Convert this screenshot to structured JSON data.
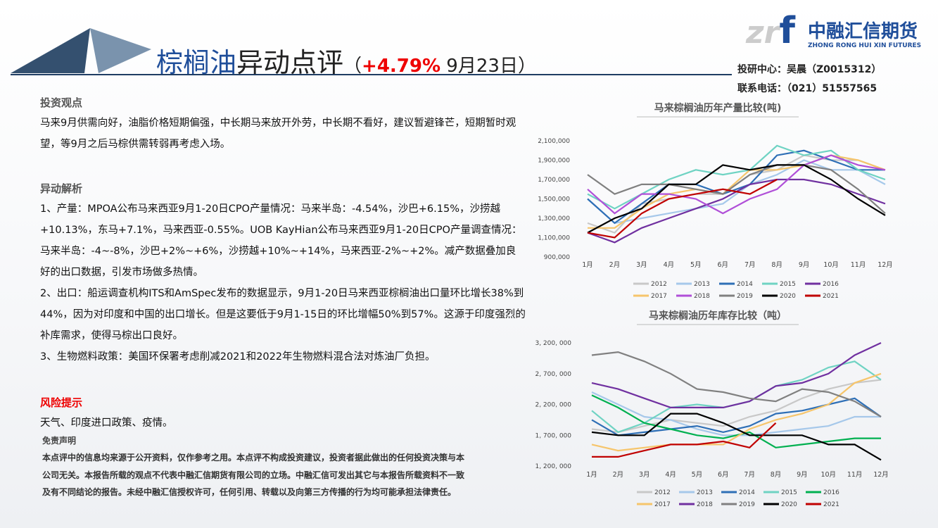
{
  "logo": {
    "letters": [
      "zr",
      "f"
    ],
    "name": "中融汇信期货",
    "english": "ZHONG RONG HUI XIN FUTURES"
  },
  "header": {
    "title": [
      "棕榈油",
      "异动点评",
      "（",
      "+4.79%",
      " 9月23日）"
    ],
    "contact": [
      "投研中心：吴晨（Z0015312）",
      "联系电话：（021）51557565"
    ]
  },
  "sections": [
    {
      "heading": "投资观点",
      "paragraphs": [
        "马来9月供需向好，油脂价格短期偏强，中长期马来放开外劳，中长期不看好，建议暂避锋芒，短期暂时观望，等9月之后马棕供需转弱再考虑入场。"
      ]
    },
    {
      "heading": "异动解析",
      "paragraphs": [
        "1、产量：MPOA公布马来西亚9月1-20日CPO产量情况：马来半岛：-4.54%，沙巴+6.15%，沙捞越+10.13%，东马+7.1%，马来西亚-0.55%。UOB KayHian公布马来西亚9月1-20日CPO产量调查情况：马来半岛：-4~-8%，沙巴+2%~+6%，沙捞越+10%~+14%，马来西亚-2%~+2%。减产数据叠加良好的出口数据，引发市场做多热情。",
        "2、出口：船运调查机构ITS和AmSpec发布的数据显示，9月1-20日马来西亚棕榈油出口量环比增长38%到44%，因为对印度和中国的出口增长。但是这要低于9月1-15日的环比增幅50%到57%。这源于印度强烈的补库需求，使得马棕出口良好。",
        "3、生物燃料政策：美国环保署考虑削减2021和2022年生物燃料混合法对炼油厂负担。"
      ]
    },
    {
      "heading": "风险提示",
      "paragraphs": [
        "天气、印度进口政策、疫情。"
      ]
    }
  ],
  "disclaimer": {
    "heading": "免责声明",
    "text": "本点评中的信息均来源于公开资料，仅作参考之用。本点评不构成投资建议，投资者据此做出的任何投资决策与本公司无关。本报告所载的观点不代表中融汇信期货有限公司的立场。中融汇信可发出其它与本报告所载资料不一致及有不同结论的报告。未经中融汇信授权许可，任何引用、转载以及向第三方传播的行为均可能承担法律责任。"
  },
  "chart_data": [
    {
      "type": "line",
      "title": "马来棕榈油历年产量比较(吨)",
      "grid": false,
      "categories": [
        "1月",
        "2月",
        "3月",
        "4月",
        "5月",
        "6月",
        "7月",
        "8月",
        "9月",
        "10月",
        "11月",
        "12月"
      ],
      "ylim": [
        900000,
        2100000
      ],
      "yticks": [
        {
          "value": 900000,
          "label": "900,000"
        },
        {
          "value": 1100000,
          "label": "1,100,000"
        },
        {
          "value": 1300000,
          "label": "1,300,000"
        },
        {
          "value": 1500000,
          "label": "1,500,000"
        },
        {
          "value": 1700000,
          "label": "1,700,000"
        },
        {
          "value": 1900000,
          "label": "1,900,000"
        },
        {
          "value": 2100000,
          "label": "2,100,000"
        }
      ],
      "series": [
        {
          "name": "2012",
          "color": "#c8c8c8",
          "values": [
            1250000,
            1150000,
            1450000,
            1500000,
            1550000,
            1550000,
            1750000,
            1800000,
            1950000,
            1900000,
            1900000,
            1800000
          ]
        },
        {
          "name": "2013",
          "color": "#a6c8ea",
          "values": [
            1500000,
            1250000,
            1300000,
            1350000,
            1400000,
            1450000,
            1650000,
            1750000,
            1900000,
            1800000,
            1800000,
            1650000
          ]
        },
        {
          "name": "2014",
          "color": "#2e6fb6",
          "values": [
            1500000,
            1250000,
            1450000,
            1650000,
            1650000,
            1550000,
            1650000,
            1950000,
            2000000,
            1900000,
            1800000,
            1800000
          ]
        },
        {
          "name": "2015",
          "color": "#6fd3c3",
          "values": [
            1550000,
            1400000,
            1550000,
            1700000,
            1800000,
            1750000,
            1800000,
            2050000,
            1950000,
            2000000,
            1800000,
            1700000
          ]
        },
        {
          "name": "2016",
          "color": "#7030a0",
          "values": [
            1150000,
            1050000,
            1200000,
            1300000,
            1400000,
            1500000,
            1650000,
            1700000,
            1700000,
            1650000,
            1550000,
            1450000
          ]
        },
        {
          "name": "2017",
          "color": "#f6c56b",
          "values": [
            1200000,
            1200000,
            1400000,
            1550000,
            1600000,
            1550000,
            1800000,
            1800000,
            1850000,
            1950000,
            1900000,
            1800000
          ]
        },
        {
          "name": "2018",
          "color": "#b04fd8",
          "values": [
            1600000,
            1350000,
            1550000,
            1550000,
            1500000,
            1350000,
            1500000,
            1600000,
            1850000,
            1950000,
            1850000,
            1800000
          ]
        },
        {
          "name": "2019",
          "color": "#808080",
          "values": [
            1750000,
            1550000,
            1650000,
            1650000,
            1600000,
            1550000,
            1750000,
            1850000,
            1850000,
            1800000,
            1600000,
            1350000
          ]
        },
        {
          "name": "2020",
          "color": "#000000",
          "values": [
            1150000,
            1300000,
            1400000,
            1650000,
            1650000,
            1850000,
            1800000,
            1850000,
            1850000,
            1700000,
            1500000,
            1330000
          ]
        },
        {
          "name": "2021",
          "color": "#c00000",
          "values": [
            1150000,
            1100000,
            1350000,
            1500000,
            1550000,
            1600000,
            1550000,
            1700000,
            null,
            null,
            null,
            null
          ]
        }
      ]
    },
    {
      "type": "line",
      "title": "马来棕榈油历年库存比较（吨）",
      "grid": false,
      "categories": [
        "1月",
        "2月",
        "3月",
        "4月",
        "5月",
        "6月",
        "7月",
        "8月",
        "9月",
        "10月",
        "11月",
        "12月"
      ],
      "ylim": [
        1200000,
        3200000
      ],
      "yticks": [
        {
          "value": 1200000,
          "label": "1, 200, 000"
        },
        {
          "value": 1700000,
          "label": "1, 700, 000"
        },
        {
          "value": 2200000,
          "label": "2, 200, 000"
        },
        {
          "value": 2700000,
          "label": "2, 700, 000"
        },
        {
          "value": 3200000,
          "label": "3, 200, 000"
        }
      ],
      "series": [
        {
          "name": "2012",
          "color": "#c8c8c8",
          "values": [
            1800000,
            1750000,
            1850000,
            1950000,
            1900000,
            1850000,
            2000000,
            2100000,
            2300000,
            2450000,
            2550000,
            2600000
          ]
        },
        {
          "name": "2013",
          "color": "#a6c8ea",
          "values": [
            2400000,
            2200000,
            2000000,
            1950000,
            1800000,
            1700000,
            1700000,
            1750000,
            1800000,
            1850000,
            2000000,
            2000000
          ]
        },
        {
          "name": "2014",
          "color": "#2e6fb6",
          "values": [
            1950000,
            1700000,
            1750000,
            1800000,
            1850000,
            1750000,
            1850000,
            2050000,
            2100000,
            2200000,
            2300000,
            2000000
          ]
        },
        {
          "name": "2015",
          "color": "#6fd3c3",
          "values": [
            2100000,
            1750000,
            1900000,
            2150000,
            2200000,
            2150000,
            2250000,
            2500000,
            2600000,
            2800000,
            2900000,
            2600000
          ]
        },
        {
          "name": "2016",
          "color": "#00b050",
          "values": [
            2350000,
            2150000,
            1900000,
            1800000,
            1700000,
            1650000,
            1750000,
            1500000,
            1550000,
            1600000,
            1650000,
            1650000
          ]
        },
        {
          "name": "2017",
          "color": "#f6c56b",
          "values": [
            1550000,
            1450000,
            1500000,
            1550000,
            1550000,
            1550000,
            1800000,
            1950000,
            2050000,
            2200000,
            2550000,
            2700000
          ]
        },
        {
          "name": "2018",
          "color": "#7030a0",
          "values": [
            2550000,
            2450000,
            2300000,
            2150000,
            2150000,
            2150000,
            2250000,
            2500000,
            2550000,
            2700000,
            3000000,
            3200000
          ]
        },
        {
          "name": "2019",
          "color": "#808080",
          "values": [
            3000000,
            3050000,
            2900000,
            2700000,
            2450000,
            2400000,
            2300000,
            2250000,
            2450000,
            2400000,
            2250000,
            2000000
          ]
        },
        {
          "name": "2020",
          "color": "#000000",
          "values": [
            1750000,
            1700000,
            1700000,
            2050000,
            2050000,
            1900000,
            1700000,
            1700000,
            1700000,
            1550000,
            1550000,
            1300000
          ]
        },
        {
          "name": "2021",
          "color": "#c00000",
          "values": [
            1350000,
            1350000,
            1450000,
            1550000,
            1550000,
            1600000,
            1500000,
            1900000,
            null,
            null,
            null,
            null
          ]
        }
      ]
    }
  ]
}
